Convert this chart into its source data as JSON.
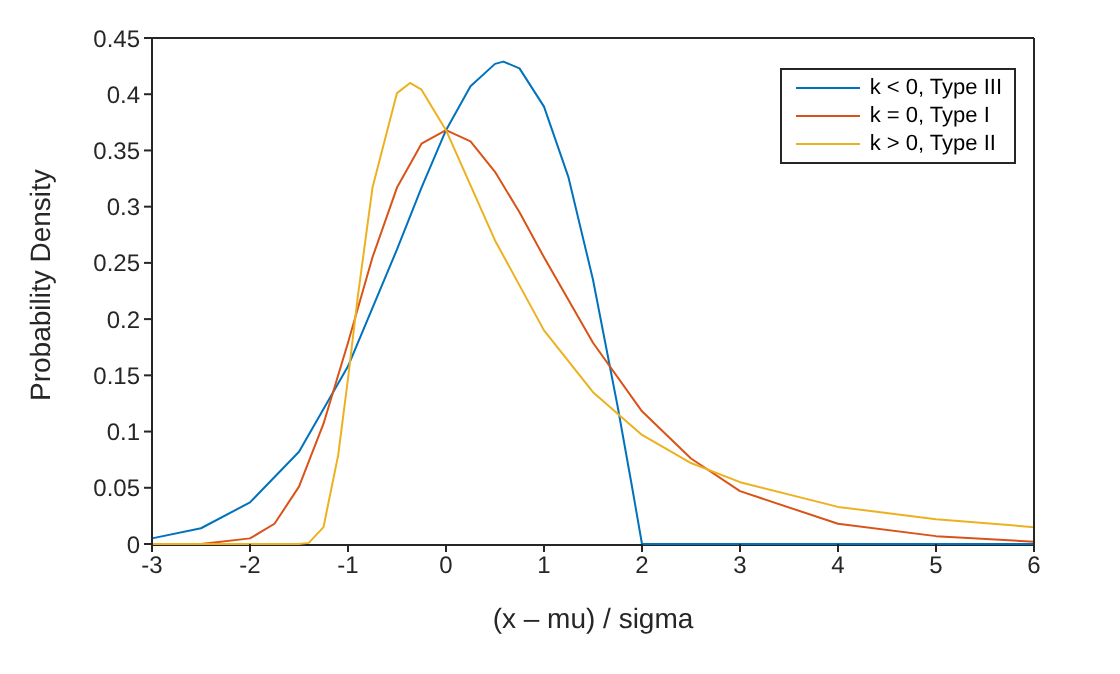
{
  "chart_data": {
    "type": "line",
    "xlabel": "(x – mu) / sigma",
    "ylabel": "Probability Density",
    "xlim": [
      -3,
      6
    ],
    "ylim": [
      0,
      0.45
    ],
    "xticks": [
      -3,
      -2,
      -1,
      0,
      1,
      2,
      3,
      4,
      5,
      6
    ],
    "yticks": [
      0,
      0.05,
      0.1,
      0.15,
      0.2,
      0.25,
      0.3,
      0.35,
      0.4,
      0.45
    ],
    "legend": "top right",
    "grid": false,
    "marker": "none",
    "line_style": "solid",
    "series": [
      {
        "name": "k < 0, Type III",
        "color": "#0072bd",
        "x": [
          -3,
          -2.5,
          -2,
          -1.5,
          -1,
          -0.5,
          -0.25,
          0,
          0.25,
          0.5,
          0.586,
          0.75,
          1,
          1.25,
          1.5,
          1.75,
          1.9,
          2,
          3,
          4,
          5,
          6
        ],
        "values": [
          0.005,
          0.014,
          0.037,
          0.082,
          0.158,
          0.262,
          0.317,
          0.368,
          0.407,
          0.427,
          0.429,
          0.423,
          0.389,
          0.326,
          0.235,
          0.123,
          0.05,
          0,
          0,
          0,
          0,
          0
        ]
      },
      {
        "name": "k = 0, Type I",
        "color": "#d95319",
        "x": [
          -3,
          -2.5,
          -2,
          -1.75,
          -1.5,
          -1.25,
          -1,
          -0.75,
          -0.5,
          -0.25,
          0,
          0.25,
          0.5,
          0.75,
          1,
          1.5,
          2,
          2.5,
          3,
          4,
          5,
          6
        ],
        "values": [
          0,
          0,
          0.005,
          0.018,
          0.051,
          0.107,
          0.179,
          0.255,
          0.317,
          0.356,
          0.368,
          0.358,
          0.331,
          0.295,
          0.255,
          0.179,
          0.118,
          0.076,
          0.047,
          0.018,
          0.007,
          0.002
        ]
      },
      {
        "name": "k > 0, Type II",
        "color": "#edb120",
        "x": [
          -3,
          -2,
          -1.5,
          -1.4,
          -1.25,
          -1.1,
          -1,
          -0.9,
          -0.75,
          -0.5,
          -0.367,
          -0.25,
          0,
          0.5,
          1,
          1.5,
          2,
          2.5,
          3,
          4,
          5,
          6
        ],
        "values": [
          0,
          0,
          0,
          0.001,
          0.015,
          0.079,
          0.147,
          0.22,
          0.317,
          0.401,
          0.41,
          0.404,
          0.368,
          0.27,
          0.19,
          0.135,
          0.097,
          0.072,
          0.055,
          0.033,
          0.022,
          0.015
        ]
      }
    ]
  }
}
